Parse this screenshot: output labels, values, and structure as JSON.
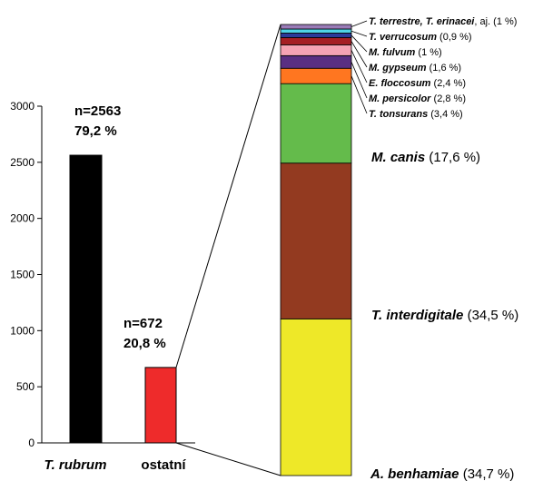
{
  "chart_data": [
    {
      "type": "bar",
      "categories": [
        "T. rubrum",
        "ostatní"
      ],
      "values": [
        2563,
        672
      ],
      "ylim": [
        0,
        3000
      ],
      "yticks": [
        0,
        500,
        1000,
        1500,
        2000,
        2500,
        3000
      ],
      "colors": [
        "#000000",
        "#ee2b2b"
      ],
      "annotations": [
        {
          "line1": "n=2563",
          "line2": "79,2 %"
        },
        {
          "line1": "n=672",
          "line2": "20,8 %"
        }
      ]
    },
    {
      "type": "bar",
      "stacked": true,
      "breakdown_of": "ostatní",
      "segments": [
        {
          "species": "A. benhamiae",
          "rest": " (34,7 %)",
          "value": 34.7,
          "color": "#eee828"
        },
        {
          "species": "T. interdigitale",
          "rest": " (34,5 %)",
          "value": 34.5,
          "color": "#933a20"
        },
        {
          "species": "M. canis",
          "rest": " (17,6 %)",
          "value": 17.6,
          "color": "#64bb4b"
        },
        {
          "species": "T. tonsurans",
          "rest": " (3,4 %)",
          "value": 3.4,
          "color": "#ff7620"
        },
        {
          "species": "M. persicolor",
          "rest": " (2,8 %)",
          "value": 2.8,
          "color": "#5a2f82"
        },
        {
          "species": "E. floccosum",
          "rest": " (2,4 %)",
          "value": 2.4,
          "color": "#f5a3b4"
        },
        {
          "species": "M. gypseum",
          "rest": " (1,6 %)",
          "value": 1.6,
          "color": "#a51f24"
        },
        {
          "species": "M. fulvum",
          "rest": " (1 %)",
          "value": 1.0,
          "color": "#2b3a99"
        },
        {
          "species": "T. verrucosum",
          "rest": " (0,9 %)",
          "value": 0.9,
          "color": "#4fd3e6"
        },
        {
          "species": "T. terrestre, T. erinacei",
          "rest": ", aj. (1 %)",
          "value": 1.0,
          "color": "#9a7cb8"
        }
      ]
    }
  ]
}
